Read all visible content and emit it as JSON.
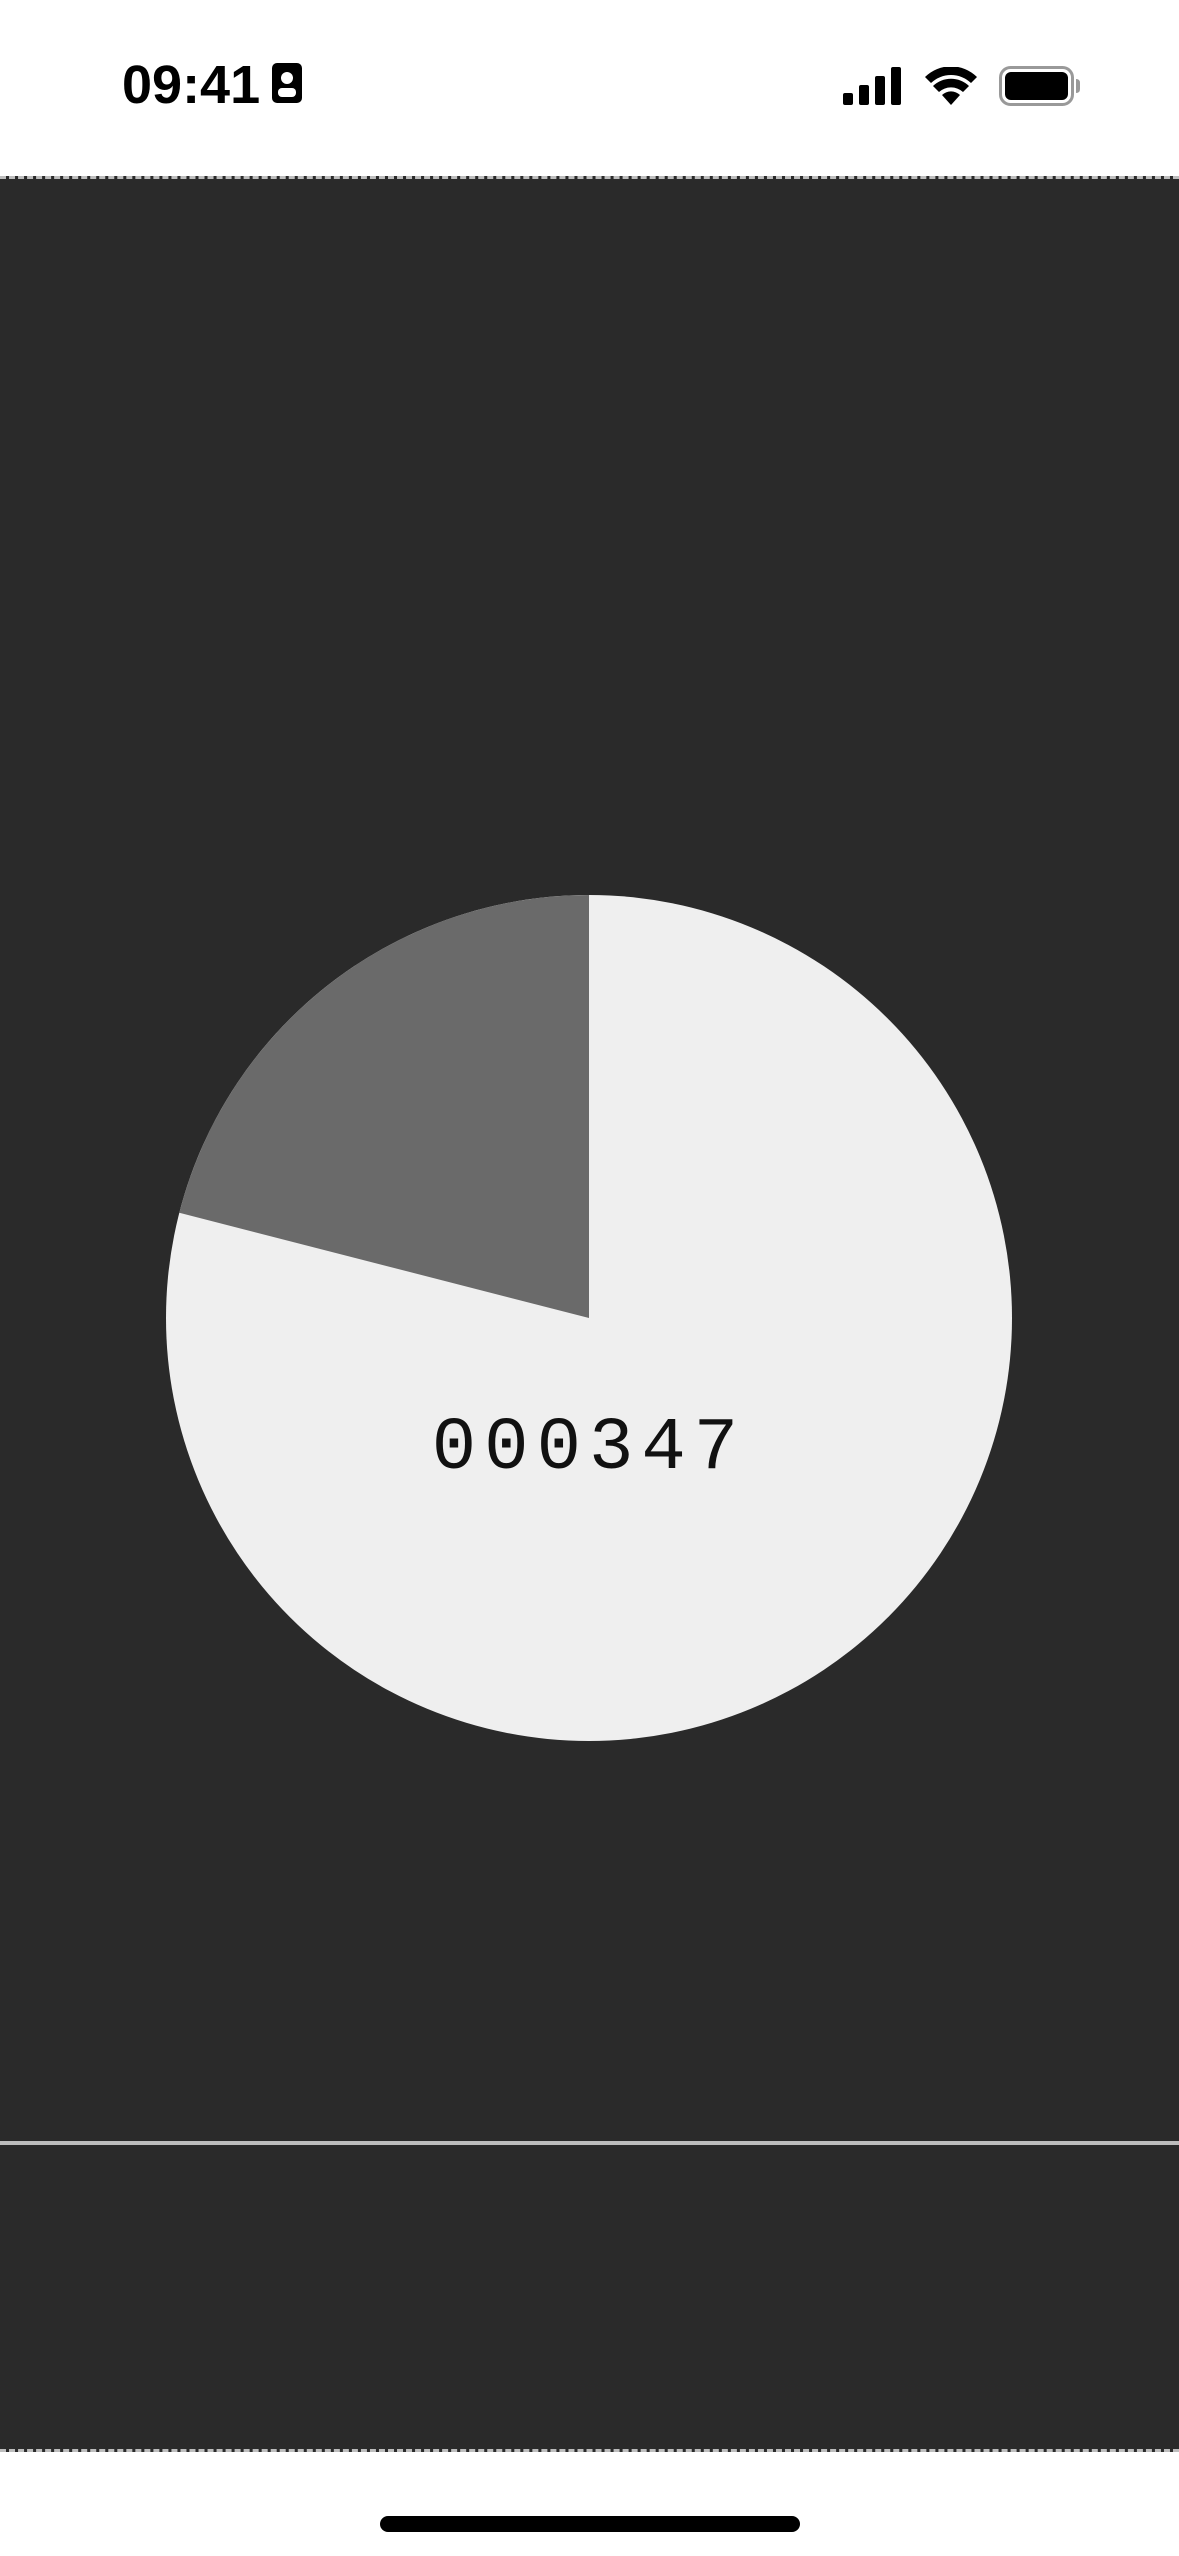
{
  "status_bar": {
    "time": "09:41",
    "icons": [
      "id-card-icon",
      "cellular-signal-icon",
      "wifi-icon",
      "battery-icon"
    ]
  },
  "colors": {
    "background": "#2a2a2a",
    "pie_main": "#efefef",
    "pie_slice": "#6a6a6a",
    "text": "#111111"
  },
  "progress": {
    "counter": "000347",
    "remaining_fraction": 0.79,
    "elapsed_fraction": 0.21
  }
}
